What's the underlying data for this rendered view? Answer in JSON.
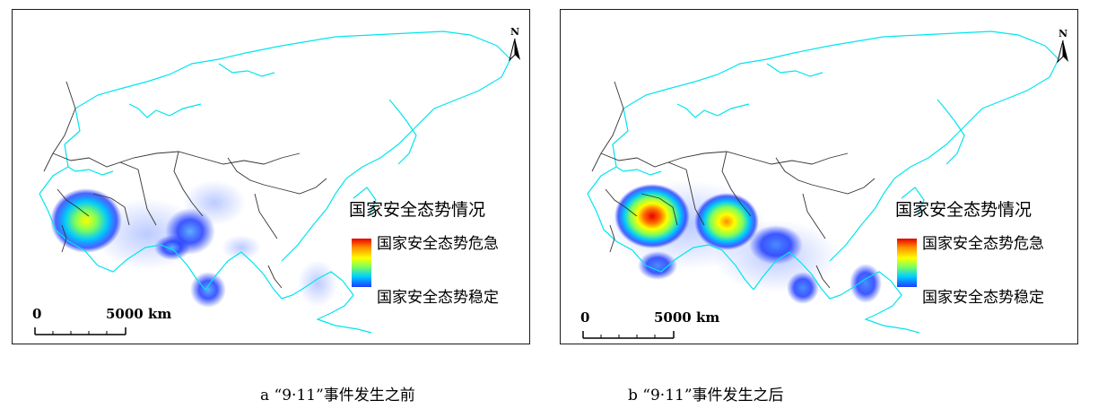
{
  "panels": [
    {
      "id": "a",
      "legend": {
        "title": "国家安全态势情况",
        "high": "国家安全态势危急",
        "low": "国家安全态势稳定"
      },
      "north_label": "N",
      "scale": {
        "zero": "0",
        "distance": "5000 km"
      },
      "caption": "a “9·11”事件发生之前"
    },
    {
      "id": "b",
      "legend": {
        "title": "国家安全态势情况",
        "high": "国家安全态势危急",
        "low": "国家安全态势稳定"
      },
      "north_label": "N",
      "scale": {
        "zero": "0",
        "distance": "5000 km"
      },
      "caption": "b “9·11”事件发生之后"
    }
  ],
  "colors": {
    "coast": "#00e5ee",
    "border": "#333333",
    "hot": "#e60000",
    "cold": "#1f3cff"
  },
  "heat_scale": [
    "#e60000",
    "#ff8c00",
    "#ffff00",
    "#7fff5a",
    "#00d0ff",
    "#1f3cff"
  ],
  "icons": {
    "north_arrow": "north-arrow-icon",
    "scale_bar": "scale-bar-icon"
  }
}
